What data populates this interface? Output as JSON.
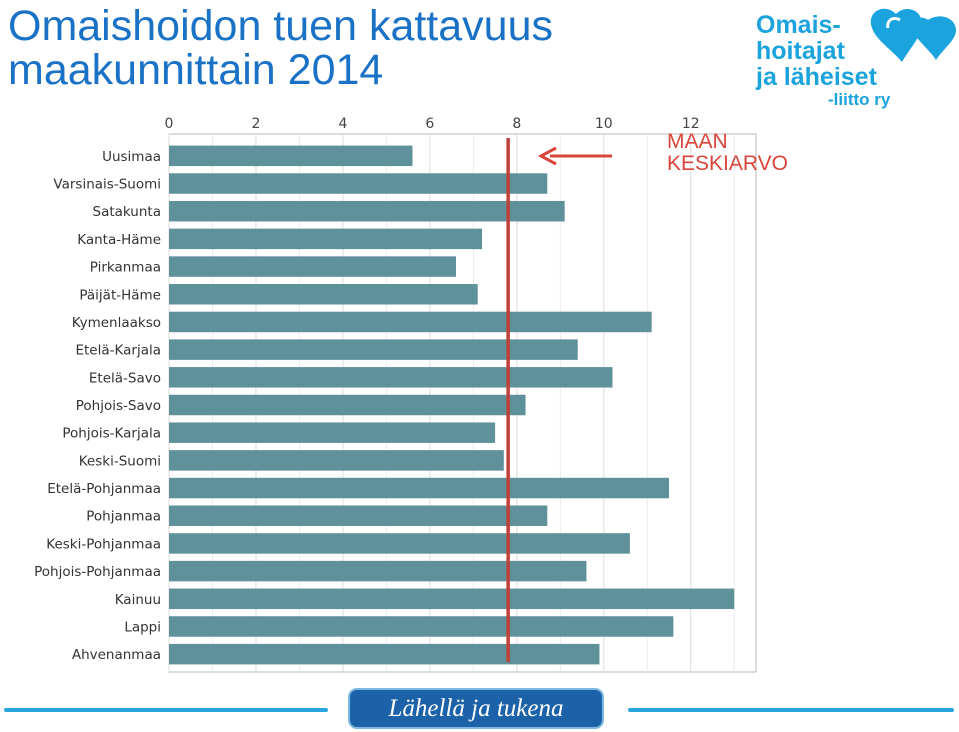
{
  "page": {
    "title_line1": "Omaishoidon tuen kattavuus",
    "title_line2": "maakunnittain 2014"
  },
  "logo": {
    "line1": "Omais-",
    "line2": "hoitajat",
    "line3": "ja läheiset",
    "line4": "-liitto ry",
    "heart_icon": "heart-logo-icon"
  },
  "annotation": {
    "line1": "MAAN",
    "line2": "KESKIARVO",
    "arrow_icon": "left-arrow-icon"
  },
  "footer": {
    "slogan": "Lähellä ja tukena"
  },
  "colors": {
    "title": "#1a72c7",
    "bar": "#5f919a",
    "mean_line": "#c0413a",
    "annotation": "#d9453b",
    "footer_box": "#1b62a8",
    "footer_line": "#2aa4dc"
  },
  "chart_data": {
    "type": "bar",
    "orientation": "horizontal",
    "categories": [
      "Uusimaa",
      "Varsinais-Suomi",
      "Satakunta",
      "Kanta-Häme",
      "Pirkanmaa",
      "Päijät-Häme",
      "Kymenlaakso",
      "Etelä-Karjala",
      "Etelä-Savo",
      "Pohjois-Savo",
      "Pohjois-Karjala",
      "Keski-Suomi",
      "Etelä-Pohjanmaa",
      "Pohjanmaa",
      "Keski-Pohjanmaa",
      "Pohjois-Pohjanmaa",
      "Kainuu",
      "Lappi",
      "Ahvenanmaa"
    ],
    "values": [
      5.6,
      8.7,
      9.1,
      7.2,
      6.6,
      7.1,
      11.1,
      9.4,
      10.2,
      8.2,
      7.5,
      7.7,
      11.5,
      8.7,
      10.6,
      9.6,
      13.0,
      11.6,
      9.9
    ],
    "xticks": [
      0,
      2,
      4,
      6,
      8,
      10,
      12
    ],
    "xlim": [
      0,
      13.5
    ],
    "mean": 7.8,
    "grid": true,
    "tick_position": "top"
  }
}
